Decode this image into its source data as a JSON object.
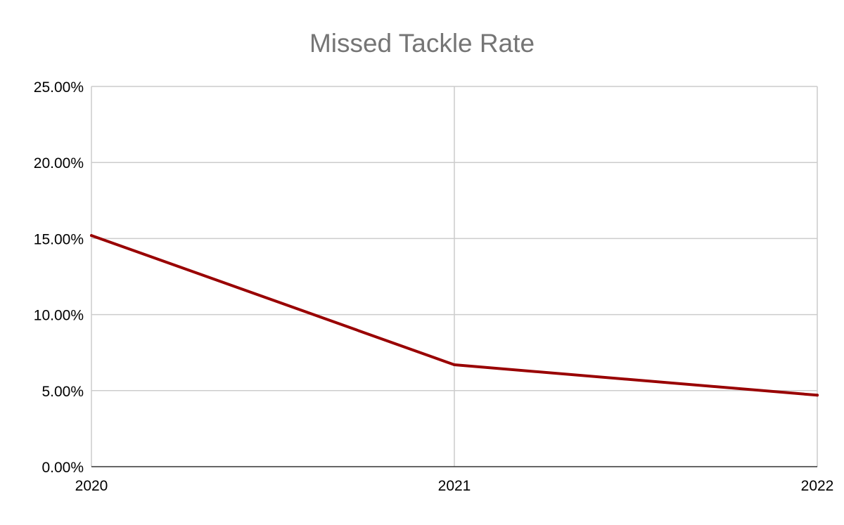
{
  "chart_data": {
    "type": "line",
    "title": "Missed Tackle Rate",
    "xlabel": "",
    "ylabel": "",
    "x": [
      "2020",
      "2021",
      "2022"
    ],
    "series": [
      {
        "values": [
          15.2,
          6.7,
          4.7
        ],
        "color": "#990000"
      }
    ],
    "ylim": [
      0,
      25
    ],
    "yticks": [
      0,
      5,
      10,
      15,
      20,
      25
    ],
    "ytick_labels": [
      "0.00%",
      "5.00%",
      "10.00%",
      "15.00%",
      "20.00%",
      "25.00%"
    ],
    "grid": true,
    "legend": "none",
    "colors": {
      "gridline": "#cccccc",
      "axis": "#333333",
      "title": "#757575"
    }
  }
}
